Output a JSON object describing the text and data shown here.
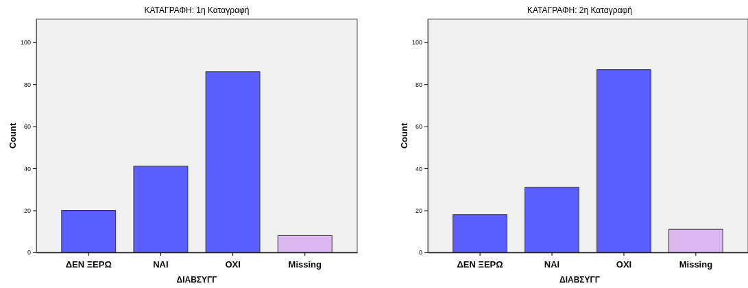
{
  "chart_data": [
    {
      "type": "bar",
      "title": "ΚΑΤΑΓΡΑΦΗ: 1η Καταγραφή",
      "xlabel": "ΔΙΑΒΣΥΓΓ",
      "ylabel": "Count",
      "categories": [
        "ΔΕΝ ΞΕΡΩ",
        "ΝΑΙ",
        "ΟΧΙ",
        "Missing"
      ],
      "values": [
        20,
        41,
        86,
        8
      ],
      "colors": [
        "#5b5fff",
        "#5b5fff",
        "#5b5fff",
        "#ddb8f0"
      ],
      "ylim": [
        0,
        111
      ],
      "yticks": [
        0,
        20,
        40,
        60,
        80,
        100
      ],
      "grid": false
    },
    {
      "type": "bar",
      "title": "ΚΑΤΑΓΡΑΦΗ: 2η Καταγραφή",
      "xlabel": "ΔΙΑΒΣΥΓΓ",
      "ylabel": "Count",
      "categories": [
        "ΔΕΝ ΞΕΡΩ",
        "ΝΑΙ",
        "ΟΧΙ",
        "Missing"
      ],
      "values": [
        18,
        31,
        87,
        11
      ],
      "colors": [
        "#5b5fff",
        "#5b5fff",
        "#5b5fff",
        "#ddb8f0"
      ],
      "ylim": [
        0,
        111
      ],
      "yticks": [
        0,
        20,
        40,
        60,
        80,
        100
      ],
      "grid": false
    }
  ]
}
